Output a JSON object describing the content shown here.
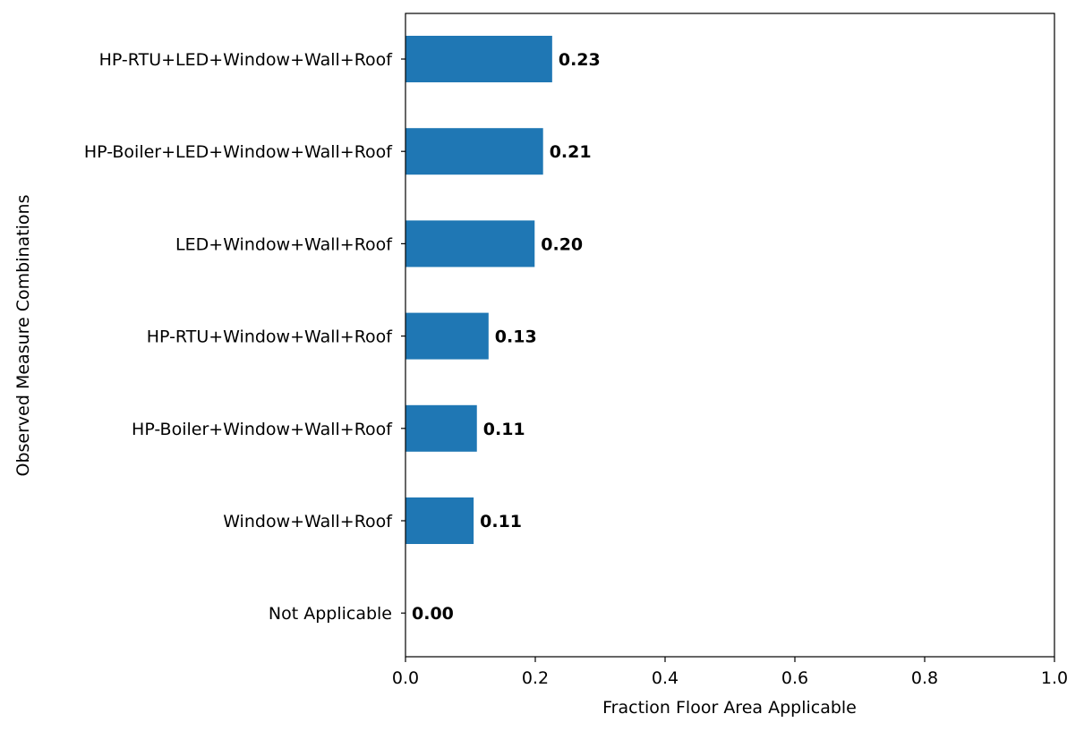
{
  "chart_data": {
    "type": "bar",
    "orientation": "horizontal",
    "title": "",
    "xlabel": "Fraction Floor Area Applicable",
    "ylabel": "Observed Measure Combinations",
    "xlim": [
      0.0,
      1.0
    ],
    "xticks": [
      "0.0",
      "0.2",
      "0.4",
      "0.6",
      "0.8",
      "1.0"
    ],
    "grid": false,
    "bar_color": "#1f77b4",
    "categories": [
      "HP-RTU+LED+Window+Wall+Roof",
      "HP-Boiler+LED+Window+Wall+Roof",
      "LED+Window+Wall+Roof",
      "HP-RTU+Window+Wall+Roof",
      "HP-Boiler+Window+Wall+Roof",
      "Window+Wall+Roof",
      "Not Applicable"
    ],
    "values": [
      0.226,
      0.212,
      0.199,
      0.128,
      0.11,
      0.105,
      0.0
    ],
    "value_labels": [
      "0.23",
      "0.21",
      "0.20",
      "0.13",
      "0.11",
      "0.11",
      "0.00"
    ]
  }
}
